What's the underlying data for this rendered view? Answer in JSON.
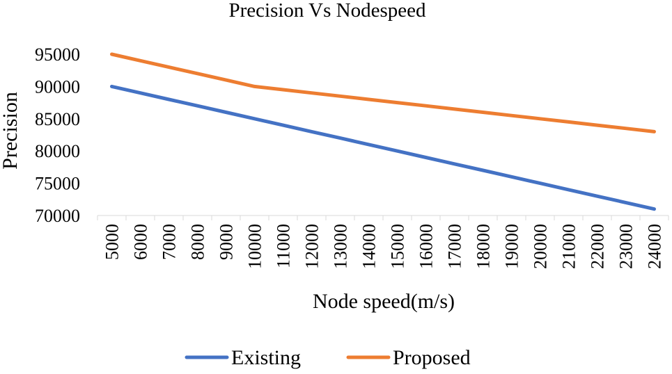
{
  "chart_data": {
    "type": "line",
    "title": "Precision Vs Nodespeed",
    "xlabel": "Node speed(m/s)",
    "ylabel": "Precision",
    "ylim": [
      70000,
      95000
    ],
    "y_ticks": [
      70000,
      75000,
      80000,
      85000,
      90000,
      95000
    ],
    "grid": false,
    "legend_position": "bottom",
    "categories": [
      "5000",
      "6000",
      "7000",
      "8000",
      "9000",
      "10000",
      "11000",
      "12000",
      "13000",
      "14000",
      "15000",
      "16000",
      "17000",
      "18000",
      "19000",
      "20000",
      "21000",
      "22000",
      "23000",
      "24000"
    ],
    "series": [
      {
        "name": "Existing",
        "color": "#4472C4",
        "values": [
          90000,
          89000,
          88000,
          87000,
          86000,
          85000,
          84000,
          83000,
          82000,
          81000,
          80000,
          79000,
          78000,
          77000,
          76000,
          75000,
          74000,
          73000,
          72000,
          71000
        ]
      },
      {
        "name": "Proposed",
        "color": "#ED7D31",
        "values": [
          95000,
          94000,
          93000,
          92000,
          91000,
          90000,
          89500,
          89000,
          88500,
          88000,
          87500,
          87000,
          86500,
          86000,
          85500,
          85000,
          84500,
          84000,
          83500,
          83000
        ]
      }
    ]
  }
}
